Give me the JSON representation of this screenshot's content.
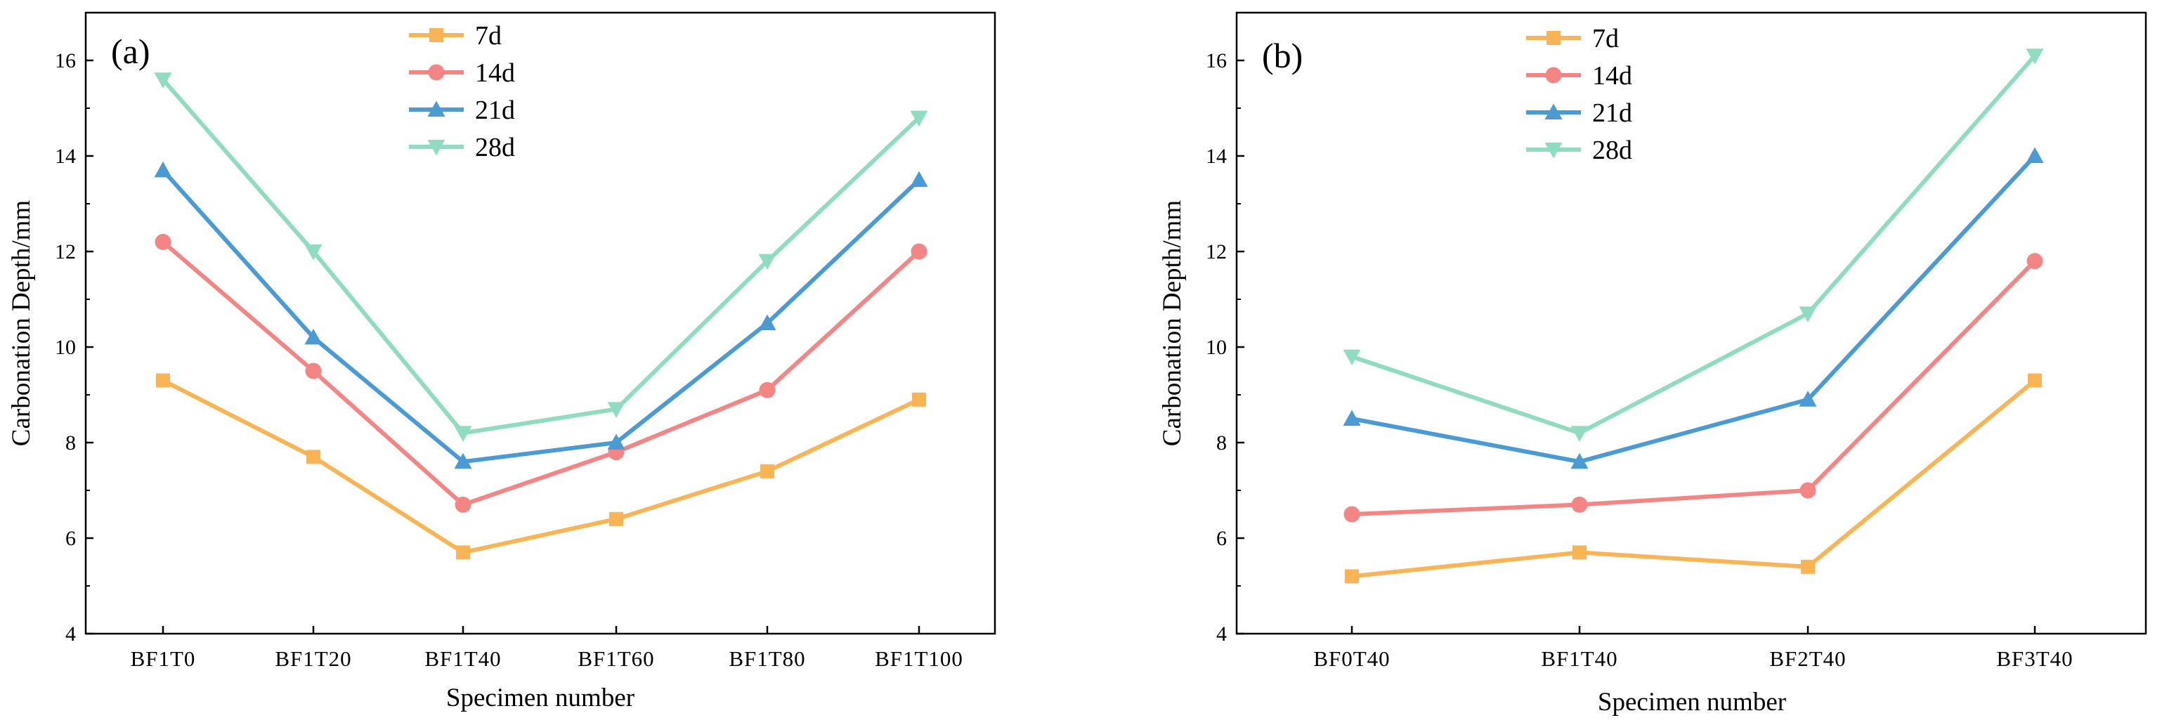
{
  "chart_data": [
    {
      "type": "line",
      "panel_label": "(a)",
      "xlabel": "Specimen number",
      "ylabel": "Carbonation Depth/mm",
      "categories": [
        "BF1T0",
        "BF1T20",
        "BF1T40",
        "BF1T60",
        "BF1T80",
        "BF1T100"
      ],
      "ylim": [
        4,
        17
      ],
      "yticks": [
        4,
        6,
        8,
        10,
        12,
        14,
        16
      ],
      "legend_position": "top-center",
      "series": [
        {
          "name": "7d",
          "marker": "square",
          "color": "#F9B455",
          "values": [
            9.3,
            7.7,
            5.7,
            6.4,
            7.4,
            8.9
          ]
        },
        {
          "name": "14d",
          "marker": "circle",
          "color": "#F38585",
          "values": [
            12.2,
            9.5,
            6.7,
            7.8,
            9.1,
            12.0
          ]
        },
        {
          "name": "21d",
          "marker": "triangle-up",
          "color": "#4A9BD4",
          "values": [
            13.7,
            10.2,
            7.6,
            8.0,
            10.5,
            13.5
          ]
        },
        {
          "name": "28d",
          "marker": "triangle-down",
          "color": "#8FDCC0",
          "values": [
            15.6,
            12.0,
            8.2,
            8.7,
            11.8,
            14.8
          ]
        }
      ]
    },
    {
      "type": "line",
      "panel_label": "(b)",
      "xlabel": "Specimen number",
      "ylabel": "Carbonation Depth/mm",
      "categories": [
        "BF0T40",
        "BF1T40",
        "BF2T40",
        "BF3T40"
      ],
      "ylim": [
        4,
        17
      ],
      "yticks": [
        4,
        6,
        8,
        10,
        12,
        14,
        16
      ],
      "legend_position": "top-center",
      "series": [
        {
          "name": "7d",
          "marker": "square",
          "color": "#F9B455",
          "values": [
            5.2,
            5.7,
            5.4,
            9.3
          ]
        },
        {
          "name": "14d",
          "marker": "circle",
          "color": "#F38585",
          "values": [
            6.5,
            6.7,
            7.0,
            11.8
          ]
        },
        {
          "name": "21d",
          "marker": "triangle-up",
          "color": "#4A9BD4",
          "values": [
            8.5,
            7.6,
            8.9,
            14.0
          ]
        },
        {
          "name": "28d",
          "marker": "triangle-down",
          "color": "#8FDCC0",
          "values": [
            9.8,
            8.2,
            10.7,
            16.1
          ]
        }
      ]
    }
  ]
}
